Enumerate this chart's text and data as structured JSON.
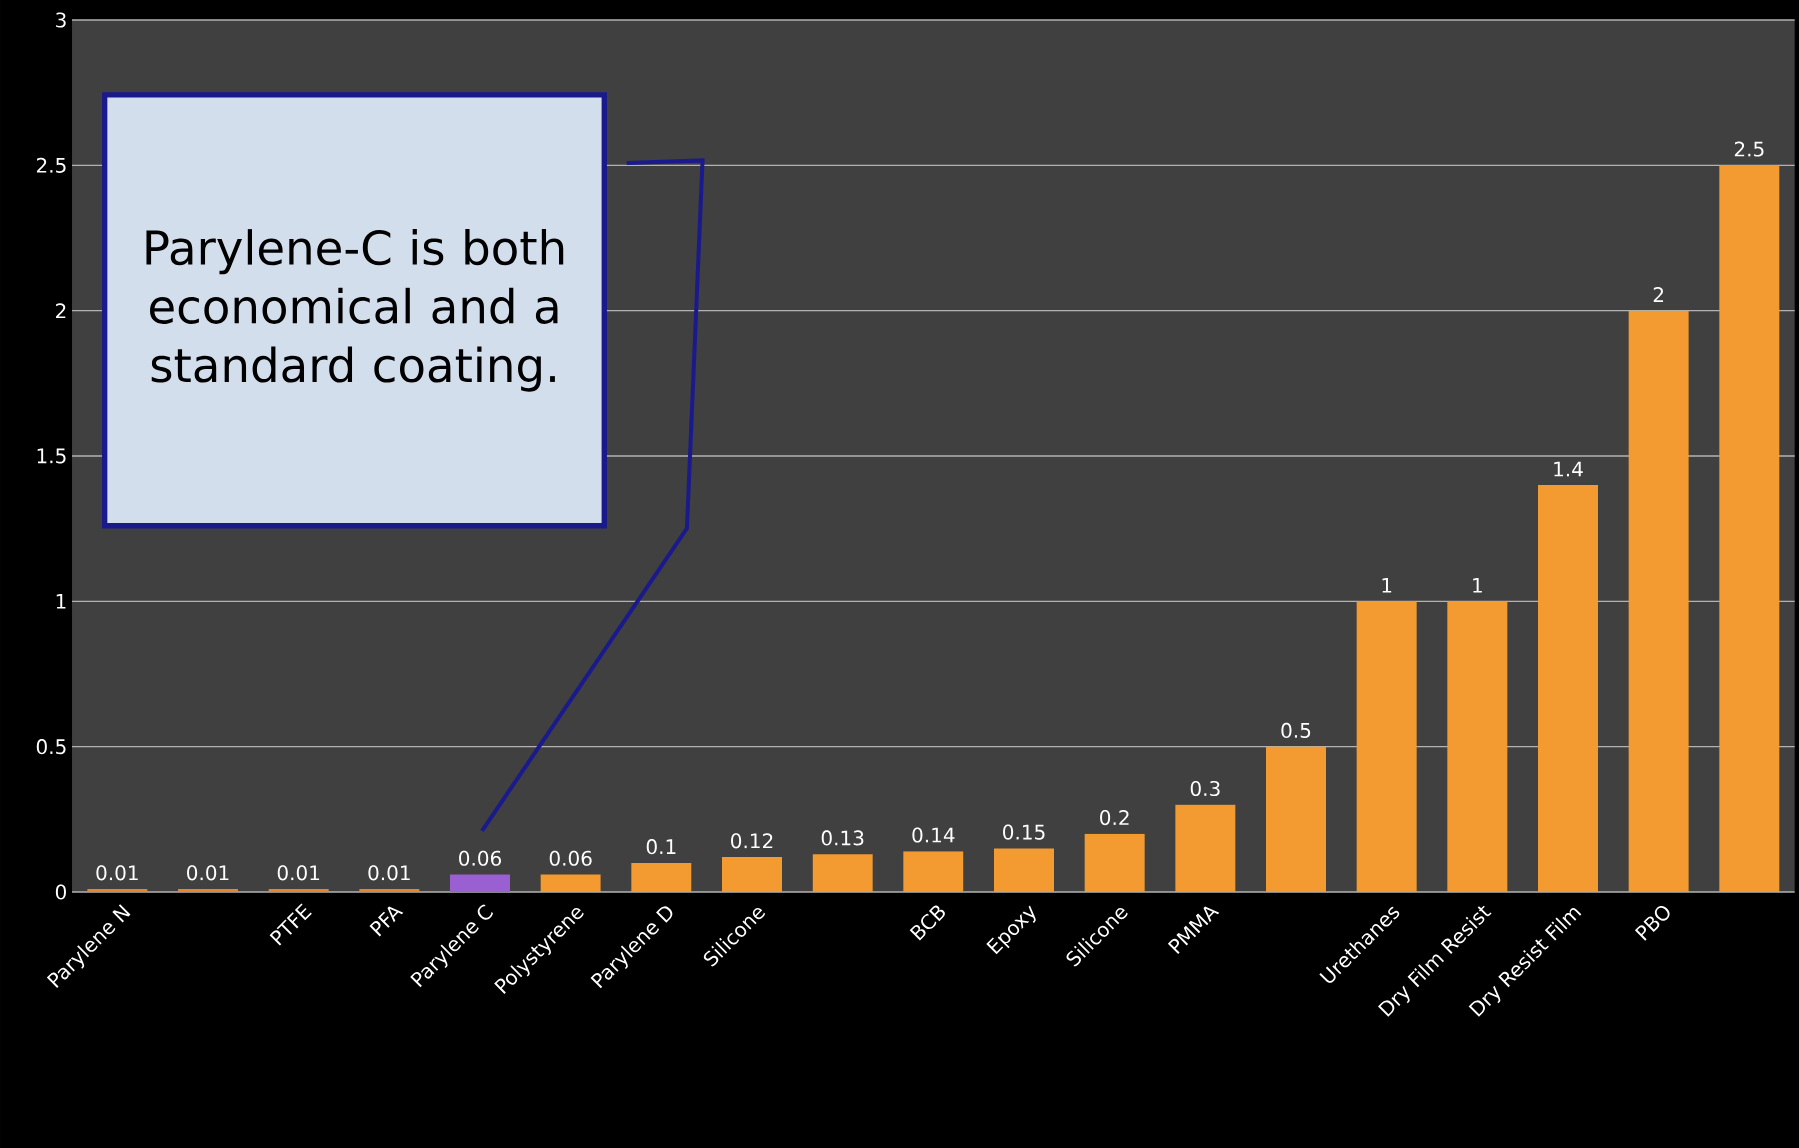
{
  "chart_data": {
    "type": "bar",
    "categories": [
      "Parylene N",
      null,
      "PTFE",
      "PFA",
      "Parylene C",
      "Polystyrene",
      "Parylene D",
      "Silicone",
      null,
      "BCB",
      "Epoxy",
      "Silicone",
      "PMMA",
      null,
      "Urethanes",
      "Dry Film Resist",
      "Dry Resist Film",
      "PBO",
      null
    ],
    "values": [
      0.01,
      0.01,
      0.01,
      0.01,
      0.06,
      0.06,
      0.1,
      0.12,
      0.13,
      0.14,
      0.15,
      0.2,
      0.3,
      0.5,
      1,
      1,
      1.4,
      2,
      2.5
    ],
    "colors": [
      "#e8842a",
      "#e8842a",
      "#e8842a",
      "#e8842a",
      "#9a5fd0",
      "#f39a30",
      "#f39a30",
      "#f39a30",
      "#f39a30",
      "#f39a30",
      "#f39a30",
      "#f39a30",
      "#f39a30",
      "#f39a30",
      "#f39a30",
      "#f39a30",
      "#f39a30",
      "#f39a30",
      "#f39a30"
    ],
    "data_labels": true,
    "ylim": [
      0,
      3
    ],
    "yticks": [
      0,
      0.5,
      1,
      1.5,
      2,
      2.5,
      3
    ],
    "grid": "y",
    "annotations": [
      "Parylene-C is both economical and a standard coating."
    ]
  }
}
